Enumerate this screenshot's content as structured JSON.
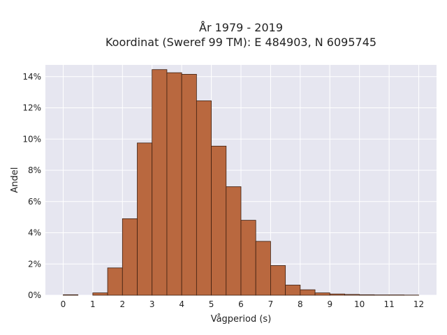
{
  "chart_data": {
    "type": "bar",
    "title_line1": "År 1979 - 2019",
    "title_line2": "Koordinat (Sweref 99 TM): E 484903, N 6095745",
    "xlabel": "Vågperiod (s)",
    "ylabel": "Andel",
    "xlim": [
      -0.6,
      12.6
    ],
    "ylim": [
      0,
      0.1475
    ],
    "xticks": [
      0,
      1,
      2,
      3,
      4,
      5,
      6,
      7,
      8,
      9,
      10,
      11,
      12
    ],
    "xtick_labels": [
      "0",
      "1",
      "2",
      "3",
      "4",
      "5",
      "6",
      "7",
      "8",
      "9",
      "10",
      "11",
      "12"
    ],
    "yticks": [
      0,
      0.02,
      0.04,
      0.06,
      0.08,
      0.1,
      0.12,
      0.14
    ],
    "ytick_labels": [
      "0%",
      "2%",
      "4%",
      "6%",
      "8%",
      "10%",
      "12%",
      "14%"
    ],
    "bin_width": 0.5,
    "bin_starts": [
      0,
      0.5,
      1,
      1.5,
      2,
      2.5,
      3,
      3.5,
      4,
      4.5,
      5,
      5.5,
      6,
      6.5,
      7,
      7.5,
      8,
      8.5,
      9,
      9.5,
      10,
      10.5,
      11,
      11.5
    ],
    "values": [
      0.0003,
      0.0,
      0.0015,
      0.0175,
      0.049,
      0.0975,
      0.1445,
      0.1425,
      0.1415,
      0.1245,
      0.0955,
      0.0695,
      0.048,
      0.0345,
      0.019,
      0.0065,
      0.0035,
      0.0015,
      0.0008,
      0.0005,
      0.0003,
      0.0002,
      0.0002,
      0.0001
    ],
    "grid": true,
    "colors": {
      "bar_fill": "#b9683f",
      "bar_edge": "#3d1f10",
      "plot_background": "#e6e6f0",
      "grid": "#ffffff"
    }
  }
}
